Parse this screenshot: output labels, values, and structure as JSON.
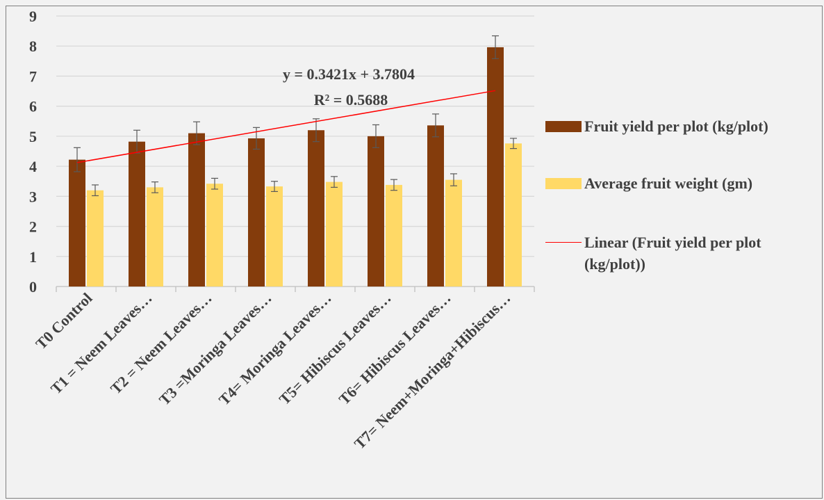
{
  "chart_data": {
    "type": "bar",
    "categories": [
      "T0 Control",
      "T1 = Neem Leaves…",
      "T2 = Neem Leaves…",
      "T3 =Moringa Leaves…",
      "T4= Moringa Leaves…",
      "T5= Hibiscus Leaves…",
      "T6= Hibiscus Leaves…",
      "T7= Neem+Moringa+Hibiscus…"
    ],
    "series": [
      {
        "name": "Fruit yield per plot (kg/plot)",
        "color": "#843c0c",
        "values": [
          4.22,
          4.82,
          5.1,
          4.93,
          5.2,
          5.0,
          5.36,
          7.96
        ],
        "errors": [
          0.4,
          0.38,
          0.38,
          0.36,
          0.38,
          0.38,
          0.38,
          0.38
        ]
      },
      {
        "name": "Average fruit weight (gm)",
        "color": "#ffd966",
        "values": [
          3.2,
          3.3,
          3.42,
          3.33,
          3.48,
          3.38,
          3.55,
          4.76
        ],
        "errors": [
          0.18,
          0.18,
          0.18,
          0.17,
          0.18,
          0.18,
          0.2,
          0.17
        ]
      }
    ],
    "trendline": {
      "name": "Linear (Fruit yield per plot (kg/plot))",
      "color": "#ff0000",
      "slope": 0.3421,
      "intercept": 3.7804,
      "equation": "y = 0.3421x + 3.7804",
      "r2": "R² = 0.5688"
    },
    "ylim": [
      0,
      9
    ],
    "yticks": [
      0,
      1,
      2,
      3,
      4,
      5,
      6,
      7,
      8,
      9
    ],
    "grid": true,
    "legend_position": "right"
  }
}
